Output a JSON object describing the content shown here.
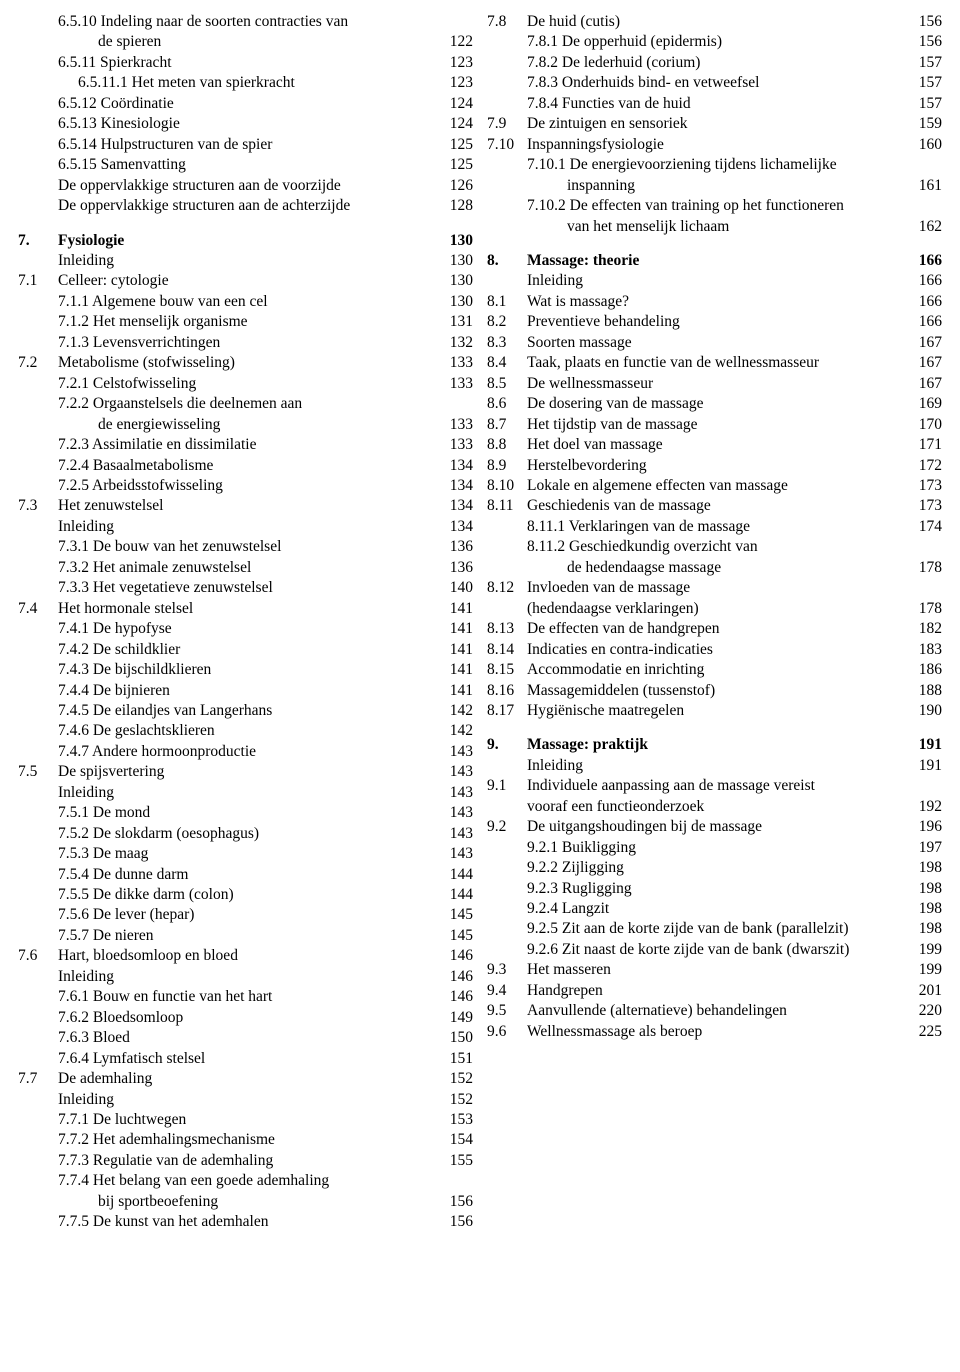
{
  "columns": [
    [
      {
        "num": "",
        "label": "6.5.10 Indeling naar de soorten contracties van",
        "page": "",
        "indent": 0
      },
      {
        "num": "",
        "label": "de spieren",
        "page": "122",
        "indent": 2
      },
      {
        "num": "",
        "label": "6.5.11 Spierkracht",
        "page": "123",
        "indent": 0
      },
      {
        "num": "",
        "label": "6.5.11.1 Het meten van spierkracht",
        "page": "123",
        "indent": 1
      },
      {
        "num": "",
        "label": "6.5.12 Coördinatie",
        "page": "124",
        "indent": 0
      },
      {
        "num": "",
        "label": "6.5.13 Kinesiologie",
        "page": "124",
        "indent": 0
      },
      {
        "num": "",
        "label": "6.5.14 Hulpstructuren van de spier",
        "page": "125",
        "indent": 0
      },
      {
        "num": "",
        "label": "6.5.15 Samenvatting",
        "page": "125",
        "indent": 0
      },
      {
        "num": "",
        "label": "De oppervlakkige structuren aan de voorzijde",
        "page": "126",
        "indent": 0
      },
      {
        "num": "",
        "label": "De oppervlakkige structuren aan de achterzijde",
        "page": "128",
        "indent": 0
      },
      {
        "spacer": true
      },
      {
        "num": "7.",
        "label": "Fysiologie",
        "page": "130",
        "indent": 0,
        "bold": true
      },
      {
        "num": "",
        "label": "Inleiding",
        "page": "130",
        "indent": 0
      },
      {
        "num": "7.1",
        "label": "Celleer: cytologie",
        "page": "130",
        "indent": 0
      },
      {
        "num": "",
        "label": "7.1.1 Algemene bouw van een cel",
        "page": "130",
        "indent": 0
      },
      {
        "num": "",
        "label": "7.1.2 Het menselijk organisme",
        "page": "131",
        "indent": 0
      },
      {
        "num": "",
        "label": "7.1.3 Levensverrichtingen",
        "page": "132",
        "indent": 0
      },
      {
        "num": "7.2",
        "label": "Metabolisme (stofwisseling)",
        "page": "133",
        "indent": 0
      },
      {
        "num": "",
        "label": "7.2.1 Celstofwisseling",
        "page": "133",
        "indent": 0
      },
      {
        "num": "",
        "label": "7.2.2 Orgaanstelsels die deelnemen aan",
        "page": "",
        "indent": 0
      },
      {
        "num": "",
        "label": "de energiewisseling",
        "page": "133",
        "indent": 2
      },
      {
        "num": "",
        "label": "7.2.3 Assimilatie en dissimilatie",
        "page": "133",
        "indent": 0
      },
      {
        "num": "",
        "label": "7.2.4 Basaalmetabolisme",
        "page": "134",
        "indent": 0
      },
      {
        "num": "",
        "label": "7.2.5 Arbeidsstofwisseling",
        "page": "134",
        "indent": 0
      },
      {
        "num": "7.3",
        "label": "Het zenuwstelsel",
        "page": "134",
        "indent": 0
      },
      {
        "num": "",
        "label": "Inleiding",
        "page": "134",
        "indent": 0
      },
      {
        "num": "",
        "label": "7.3.1 De bouw van het zenuwstelsel",
        "page": "136",
        "indent": 0
      },
      {
        "num": "",
        "label": "7.3.2 Het animale zenuwstelsel",
        "page": "136",
        "indent": 0
      },
      {
        "num": "",
        "label": "7.3.3 Het vegetatieve zenuwstelsel",
        "page": "140",
        "indent": 0
      },
      {
        "num": "7.4",
        "label": "Het hormonale stelsel",
        "page": "141",
        "indent": 0
      },
      {
        "num": "",
        "label": "7.4.1 De hypofyse",
        "page": "141",
        "indent": 0
      },
      {
        "num": "",
        "label": "7.4.2 De schildklier",
        "page": "141",
        "indent": 0
      },
      {
        "num": "",
        "label": "7.4.3 De bijschildklieren",
        "page": "141",
        "indent": 0
      },
      {
        "num": "",
        "label": "7.4.4 De bijnieren",
        "page": "141",
        "indent": 0
      },
      {
        "num": "",
        "label": "7.4.5 De eilandjes van Langerhans",
        "page": "142",
        "indent": 0
      },
      {
        "num": "",
        "label": "7.4.6 De geslachtsklieren",
        "page": "142",
        "indent": 0
      },
      {
        "num": "",
        "label": "7.4.7 Andere hormoonproductie",
        "page": "143",
        "indent": 0
      },
      {
        "num": "7.5",
        "label": "De spijsvertering",
        "page": "143",
        "indent": 0
      },
      {
        "num": "",
        "label": "Inleiding",
        "page": "143",
        "indent": 0
      },
      {
        "num": "",
        "label": "7.5.1 De mond",
        "page": "143",
        "indent": 0
      },
      {
        "num": "",
        "label": "7.5.2 De slokdarm (oesophagus)",
        "page": "143",
        "indent": 0
      },
      {
        "num": "",
        "label": "7.5.3 De maag",
        "page": "143",
        "indent": 0
      },
      {
        "num": "",
        "label": "7.5.4 De dunne darm",
        "page": "144",
        "indent": 0
      },
      {
        "num": "",
        "label": "7.5.5 De dikke darm (colon)",
        "page": "144",
        "indent": 0
      },
      {
        "num": "",
        "label": "7.5.6 De lever (hepar)",
        "page": "145",
        "indent": 0
      },
      {
        "num": "",
        "label": "7.5.7 De nieren",
        "page": "145",
        "indent": 0
      },
      {
        "num": "7.6",
        "label": "Hart, bloedsomloop en bloed",
        "page": "146",
        "indent": 0
      },
      {
        "num": "",
        "label": "Inleiding",
        "page": "146",
        "indent": 0
      },
      {
        "num": "",
        "label": "7.6.1 Bouw en functie van het hart",
        "page": "146",
        "indent": 0
      },
      {
        "num": "",
        "label": "7.6.2 Bloedsomloop",
        "page": "149",
        "indent": 0
      },
      {
        "num": "",
        "label": "7.6.3 Bloed",
        "page": "150",
        "indent": 0
      },
      {
        "num": "",
        "label": "7.6.4 Lymfatisch stelsel",
        "page": "151",
        "indent": 0
      },
      {
        "num": "7.7",
        "label": "De ademhaling",
        "page": "152",
        "indent": 0
      },
      {
        "num": "",
        "label": "Inleiding",
        "page": "152",
        "indent": 0
      },
      {
        "num": "",
        "label": "7.7.1 De luchtwegen",
        "page": "153",
        "indent": 0
      },
      {
        "num": "",
        "label": "7.7.2 Het ademhalingsmechanisme",
        "page": "154",
        "indent": 0
      },
      {
        "num": "",
        "label": "7.7.3 Regulatie van de ademhaling",
        "page": "155",
        "indent": 0
      },
      {
        "num": "",
        "label": "7.7.4 Het belang van een goede ademhaling",
        "page": "",
        "indent": 0
      },
      {
        "num": "",
        "label": "bij sportbeoefening",
        "page": "156",
        "indent": 2
      },
      {
        "num": "",
        "label": "7.7.5 De kunst van het ademhalen",
        "page": "156",
        "indent": 0
      }
    ],
    [
      {
        "num": "7.8",
        "label": "De huid (cutis)",
        "page": "156",
        "indent": 0
      },
      {
        "num": "",
        "label": "7.8.1 De opperhuid (epidermis)",
        "page": "156",
        "indent": 0
      },
      {
        "num": "",
        "label": "7.8.2 De lederhuid (corium)",
        "page": "157",
        "indent": 0
      },
      {
        "num": "",
        "label": "7.8.3 Onderhuids bind- en vetweefsel",
        "page": "157",
        "indent": 0
      },
      {
        "num": "",
        "label": "7.8.4 Functies van de huid",
        "page": "157",
        "indent": 0
      },
      {
        "num": "7.9",
        "label": "De zintuigen en sensoriek",
        "page": "159",
        "indent": 0
      },
      {
        "num": "7.10",
        "label": "Inspanningsfysiologie",
        "page": "160",
        "indent": 0
      },
      {
        "num": "",
        "label": "7.10.1 De energievoorziening tijdens lichamelijke",
        "page": "",
        "indent": 0
      },
      {
        "num": "",
        "label": "inspanning",
        "page": "161",
        "indent": 2
      },
      {
        "num": "",
        "label": "7.10.2 De effecten van training op het functioneren",
        "page": "",
        "indent": 0
      },
      {
        "num": "",
        "label": "van het menselijk lichaam",
        "page": "162",
        "indent": 2
      },
      {
        "spacer": true
      },
      {
        "num": "8.",
        "label": "Massage: theorie",
        "page": "166",
        "indent": 0,
        "bold": true
      },
      {
        "num": "",
        "label": "Inleiding",
        "page": "166",
        "indent": 0
      },
      {
        "num": "8.1",
        "label": "Wat is massage?",
        "page": "166",
        "indent": 0
      },
      {
        "num": "8.2",
        "label": "Preventieve behandeling",
        "page": "166",
        "indent": 0
      },
      {
        "num": "8.3",
        "label": "Soorten massage",
        "page": "167",
        "indent": 0
      },
      {
        "num": "8.4",
        "label": "Taak, plaats en functie van de wellnessmasseur",
        "page": "167",
        "indent": 0
      },
      {
        "num": "8.5",
        "label": "De wellnessmasseur",
        "page": "167",
        "indent": 0
      },
      {
        "num": "8.6",
        "label": "De dosering van de massage",
        "page": "169",
        "indent": 0
      },
      {
        "num": "8.7",
        "label": "Het tijdstip van de massage",
        "page": "170",
        "indent": 0
      },
      {
        "num": "8.8",
        "label": "Het doel van massage",
        "page": "171",
        "indent": 0
      },
      {
        "num": "8.9",
        "label": "Herstelbevordering",
        "page": "172",
        "indent": 0
      },
      {
        "num": "8.10",
        "label": "Lokale en algemene effecten van massage",
        "page": "173",
        "indent": 0
      },
      {
        "num": "8.11",
        "label": "Geschiedenis van de massage",
        "page": "173",
        "indent": 0
      },
      {
        "num": "",
        "label": "8.11.1 Verklaringen van de massage",
        "page": "174",
        "indent": 0
      },
      {
        "num": "",
        "label": "8.11.2 Geschiedkundig overzicht van",
        "page": "",
        "indent": 0
      },
      {
        "num": "",
        "label": "de hedendaagse massage",
        "page": "178",
        "indent": 2
      },
      {
        "num": "8.12",
        "label": "Invloeden van de massage",
        "page": "",
        "indent": 0
      },
      {
        "num": "",
        "label": "(hedendaagse verklaringen)",
        "page": "178",
        "indent": 0
      },
      {
        "num": "8.13",
        "label": "De effecten van de handgrepen",
        "page": "182",
        "indent": 0
      },
      {
        "num": "8.14",
        "label": "Indicaties en contra-indicaties",
        "page": "183",
        "indent": 0
      },
      {
        "num": "8.15",
        "label": "Accommodatie en inrichting",
        "page": "186",
        "indent": 0
      },
      {
        "num": "8.16",
        "label": "Massagemiddelen (tussenstof)",
        "page": "188",
        "indent": 0
      },
      {
        "num": "8.17",
        "label": "Hygiënische maatregelen",
        "page": "190",
        "indent": 0
      },
      {
        "spacer": true
      },
      {
        "num": "9.",
        "label": "Massage: praktijk",
        "page": "191",
        "indent": 0,
        "bold": true
      },
      {
        "num": "",
        "label": "Inleiding",
        "page": "191",
        "indent": 0
      },
      {
        "num": "9.1",
        "label": "Individuele aanpassing aan de massage vereist",
        "page": "",
        "indent": 0
      },
      {
        "num": "",
        "label": "vooraf een functieonderzoek",
        "page": "192",
        "indent": 0
      },
      {
        "num": "9.2",
        "label": "De uitgangshoudingen bij de massage",
        "page": "196",
        "indent": 0
      },
      {
        "num": "",
        "label": "9.2.1 Buikligging",
        "page": "197",
        "indent": 0
      },
      {
        "num": "",
        "label": "9.2.2 Zijligging",
        "page": "198",
        "indent": 0
      },
      {
        "num": "",
        "label": "9.2.3 Rugligging",
        "page": "198",
        "indent": 0
      },
      {
        "num": "",
        "label": "9.2.4 Langzit",
        "page": "198",
        "indent": 0
      },
      {
        "num": "",
        "label": "9.2.5 Zit aan de korte zijde van de bank (parallelzit)",
        "page": "198",
        "indent": 0
      },
      {
        "num": "",
        "label": "9.2.6 Zit naast de korte zijde van de bank (dwarszit)",
        "page": "199",
        "indent": 0
      },
      {
        "num": "9.3",
        "label": "Het masseren",
        "page": "199",
        "indent": 0
      },
      {
        "num": "9.4",
        "label": "Handgrepen",
        "page": "201",
        "indent": 0
      },
      {
        "num": "9.5",
        "label": "Aanvullende (alternatieve) behandelingen",
        "page": "220",
        "indent": 0
      },
      {
        "num": "9.6",
        "label": "Wellnessmassage als beroep",
        "page": "225",
        "indent": 0
      }
    ]
  ]
}
